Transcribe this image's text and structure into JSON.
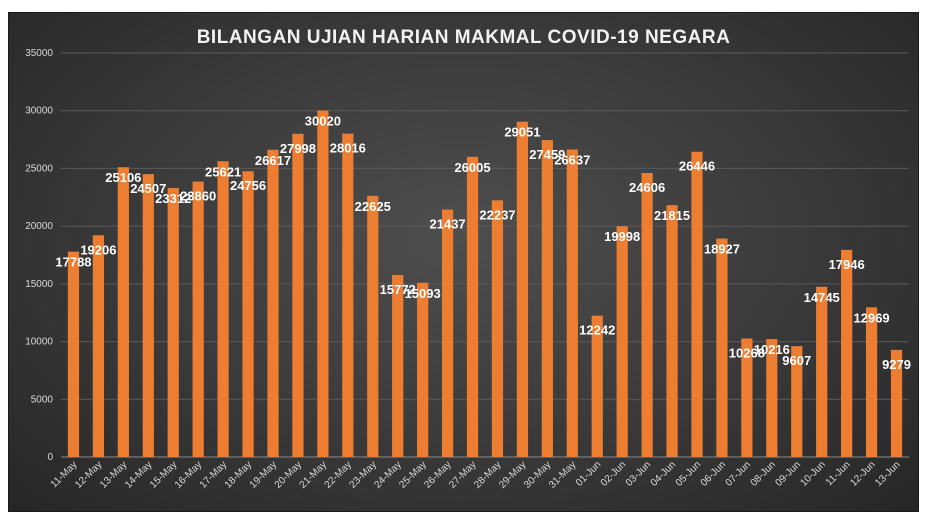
{
  "chart_data": {
    "type": "bar",
    "title": "BILANGAN UJIAN HARIAN MAKMAL COVID-19 NEGARA",
    "xlabel": "",
    "ylabel": "",
    "ylim": [
      0,
      35000
    ],
    "yticks": [
      0,
      5000,
      10000,
      15000,
      20000,
      25000,
      30000,
      35000
    ],
    "grid": true,
    "legend": "none",
    "bar_color": "#ed7d31",
    "categories": [
      "11-May",
      "12-May",
      "13-May",
      "14-May",
      "15-May",
      "16-May",
      "17-May",
      "18-May",
      "19-May",
      "20-May",
      "21-May",
      "22-May",
      "23-May",
      "24-May",
      "25-May",
      "26-May",
      "27-May",
      "28-May",
      "29-May",
      "30-May",
      "31-May",
      "01-Jun",
      "02-Jun",
      "03-Jun",
      "04-Jun",
      "05-Jun",
      "06-Jun",
      "07-Jun",
      "08-Jun",
      "09-Jun",
      "10-Jun",
      "11-Jun",
      "12-Jun",
      "13-Jun"
    ],
    "values": [
      17788,
      19206,
      25106,
      24507,
      23312,
      23860,
      25621,
      24756,
      26617,
      27998,
      30020,
      28016,
      22625,
      15772,
      15093,
      21437,
      26005,
      22237,
      29051,
      27459,
      26637,
      12242,
      19998,
      24606,
      21815,
      26446,
      18927,
      10268,
      10216,
      9607,
      14745,
      17946,
      12969,
      9279
    ]
  }
}
